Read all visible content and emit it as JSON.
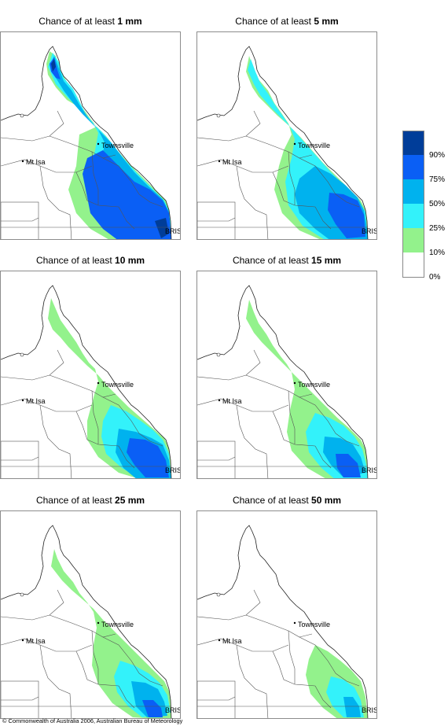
{
  "panels": [
    {
      "title_prefix": "Chance of at least ",
      "amount": "1 mm"
    },
    {
      "title_prefix": "Chance of at least ",
      "amount": "5 mm"
    },
    {
      "title_prefix": "Chance of at least ",
      "amount": "10 mm"
    },
    {
      "title_prefix": "Chance of at least ",
      "amount": "15 mm"
    },
    {
      "title_prefix": "Chance of at least ",
      "amount": "25 mm"
    },
    {
      "title_prefix": "Chance of at least ",
      "amount": "50 mm"
    }
  ],
  "places": {
    "townsville": "Townsville",
    "mt_isa": "Mt Isa",
    "brisbane": "BRIS"
  },
  "legend": {
    "labels": [
      "90%",
      "75%",
      "50%",
      "25%",
      "10%",
      "0%"
    ],
    "colors": [
      "#003d99",
      "#0a5ff5",
      "#00b2ee",
      "#33f2fa",
      "#93f28c",
      "#ffffff"
    ]
  },
  "copyright": "© Commonwealth of Australia 2006, Australian Bureau of Meteorology"
}
